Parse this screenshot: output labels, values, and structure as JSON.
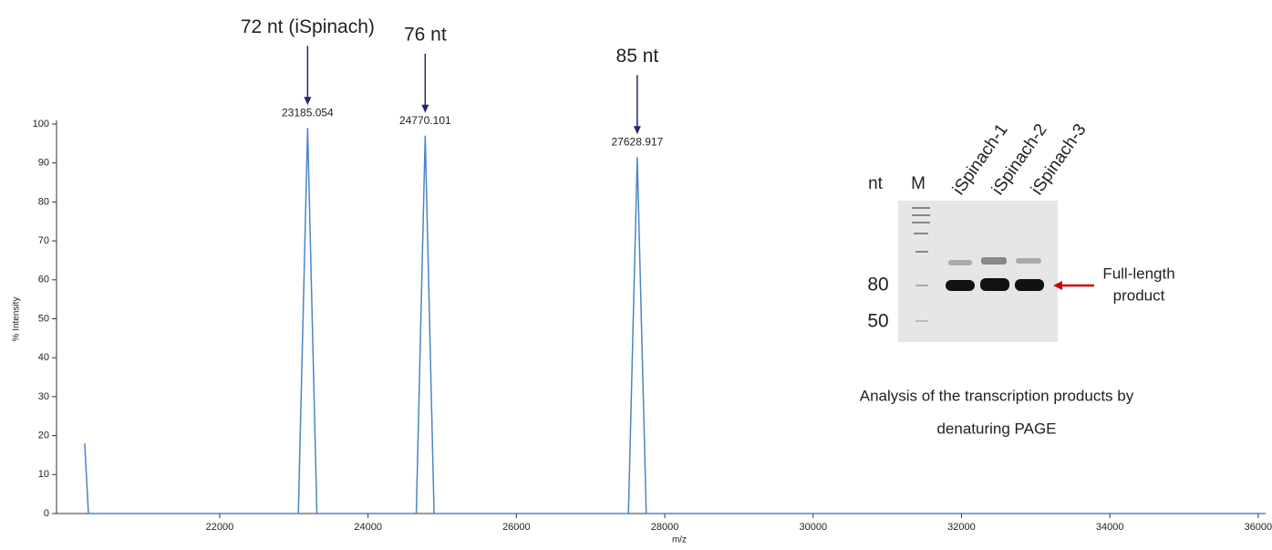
{
  "chart_data": {
    "type": "line",
    "xlabel": "m/z",
    "ylabel": "% Intensity",
    "x": [
      20180,
      20230,
      23060,
      23185.054,
      23310,
      24650,
      24770.101,
      24890,
      27510,
      27628.917,
      27750,
      36100
    ],
    "series": [
      {
        "color": "#4a86c5",
        "values": [
          18,
          0,
          0,
          99,
          0,
          0,
          97,
          0,
          0,
          91.5,
          0,
          0
        ]
      }
    ],
    "xlim": [
      19800,
      36100
    ],
    "ylim": [
      0,
      100
    ],
    "xticks": [
      22000,
      24000,
      26000,
      28000,
      30000,
      32000,
      34000,
      36000
    ],
    "yticks": [
      0,
      10,
      20,
      30,
      40,
      50,
      60,
      70,
      80,
      90,
      100
    ],
    "peaks": [
      {
        "x": 23185.054,
        "y": 99,
        "label": "72 nt (iSpinach)"
      },
      {
        "x": 24770.101,
        "y": 97,
        "label": "76 nt"
      },
      {
        "x": 27628.917,
        "y": 91.5,
        "label": "85 nt"
      }
    ]
  },
  "inset": {
    "nt": "nt",
    "marker": "M",
    "lanes": [
      "iSpinach-1",
      "iSpinach-2",
      "iSpinach-3"
    ],
    "sizes": [
      "80",
      "50"
    ],
    "product": [
      "Full-length",
      "product"
    ],
    "caption": [
      "Analysis of the transcription products by",
      "denaturing PAGE"
    ]
  }
}
